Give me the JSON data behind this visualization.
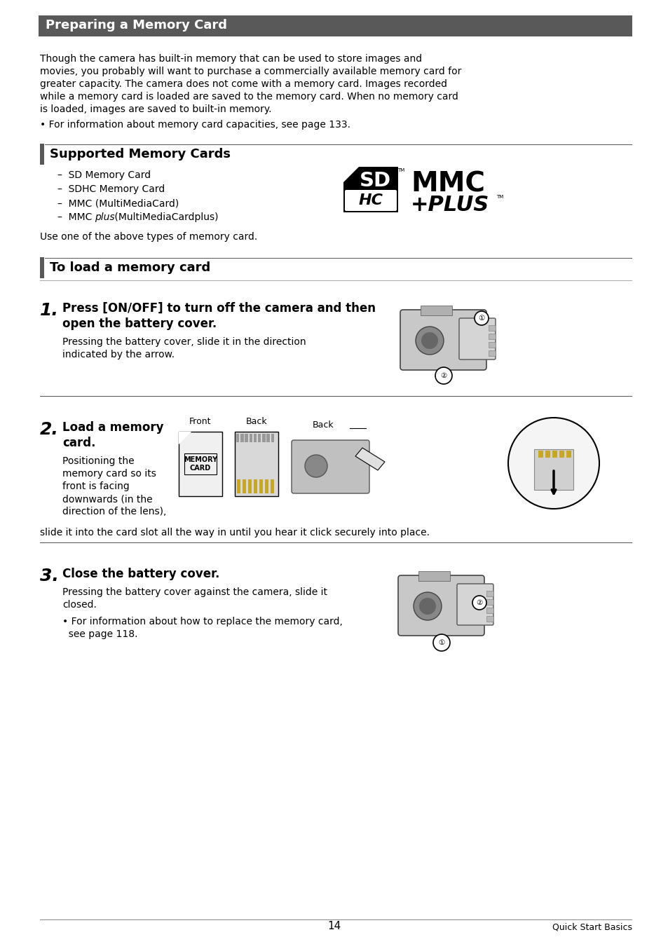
{
  "bg_color": "#ffffff",
  "header_bg": "#595959",
  "header_text": "Preparing a Memory Card",
  "header_text_color": "#ffffff",
  "accent_color": "#595959",
  "body_text1_lines": [
    "Though the camera has built-in memory that can be used to store images and",
    "movies, you probably will want to purchase a commercially available memory card for",
    "greater capacity. The camera does not come with a memory card. Images recorded",
    "while a memory card is loaded are saved to the memory card. When no memory card",
    "is loaded, images are saved to built-in memory."
  ],
  "bullet1": "• For information about memory card capacities, see page 133.",
  "section2_title": "Supported Memory Cards",
  "list_items": [
    "–  SD Memory Card",
    "–  SDHC Memory Card",
    "–  MMC (MultiMediaCard)"
  ],
  "mmc_plus_prefix": "–  MMC",
  "mmc_plus_italic": "plus",
  "mmc_plus_suffix": " (MultiMediaCardplus)",
  "use_text": "Use one of the above types of memory card.",
  "section3_title": "To load a memory card",
  "step1_num": "1.",
  "step1_bold_line1": "Press [ON/OFF] to turn off the camera and then",
  "step1_bold_line2": "open the battery cover.",
  "step1_body": "Pressing the battery cover, slide it in the direction\nindicated by the arrow.",
  "step2_num": "2.",
  "step2_bold_line1": "Load a memory",
  "step2_bold_line2": "card.",
  "step2_body_lines": [
    "Positioning the",
    "memory card so its",
    "front is facing",
    "downwards (in the",
    "direction of the lens),"
  ],
  "step2_body2": "slide it into the card slot all the way in until you hear it click securely into place.",
  "step3_num": "3.",
  "step3_bold": "Close the battery cover.",
  "step3_body1": "Pressing the battery cover against the camera, slide it",
  "step3_body2": "closed.",
  "step3_bullet1": "• For information about how to replace the memory card,",
  "step3_bullet2": "  see page 118.",
  "footer_num": "14",
  "footer_right": "Quick Start Basics",
  "body_fs": 10,
  "title_fs": 13,
  "step_num_fs": 18,
  "step_bold_fs": 12
}
